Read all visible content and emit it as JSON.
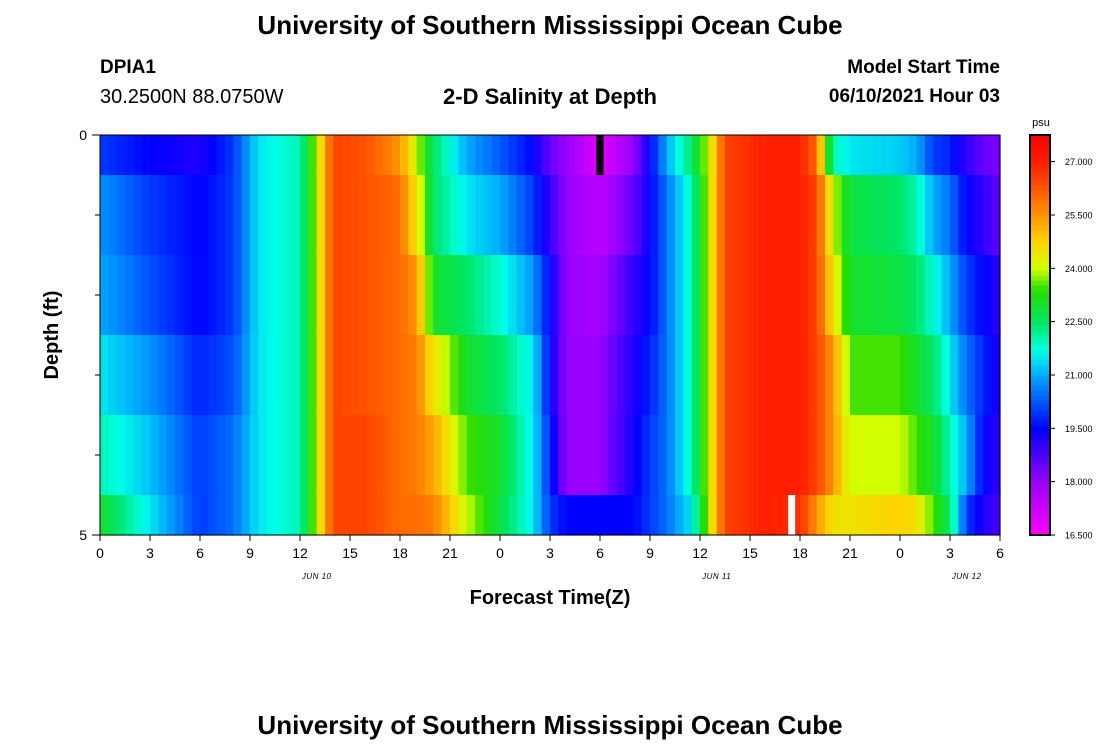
{
  "page": {
    "title_top": "University of Southern Mississippi Ocean Cube",
    "title_bottom": "University of Southern Mississippi Ocean Cube",
    "station_id": "DPIA1",
    "coordinates": "30.2500N  88.0750W",
    "subtitle": "2-D Salinity at Depth",
    "model_start_label": "Model Start Time",
    "model_start_value": "06/10/2021 Hour 03"
  },
  "chart_data": {
    "type": "heatmap",
    "title": "2-D Salinity at Depth",
    "xlabel": "Forecast Time(Z)",
    "ylabel": "Depth (ft)",
    "x_hours_range": [
      0,
      54
    ],
    "x_tick_step_hours": 3,
    "x_tick_labels": [
      "0",
      "3",
      "6",
      "9",
      "12",
      "15",
      "18",
      "21",
      "0",
      "3",
      "6",
      "9",
      "12",
      "15",
      "18",
      "21",
      "0",
      "3",
      "6"
    ],
    "day_labels": [
      {
        "text": "JUN 10",
        "hour": 13
      },
      {
        "text": "JUN 11",
        "hour": 37
      },
      {
        "text": "JUN 12",
        "hour": 52
      }
    ],
    "y_range": [
      0,
      5
    ],
    "y_tick_labels": [
      "0",
      "5"
    ],
    "y_minor_ticks": [
      1,
      2,
      3,
      4
    ],
    "depth_layers": [
      0,
      0.5,
      1.5,
      2.5,
      3.5,
      4.5,
      5
    ],
    "colorbar": {
      "unit": "psu",
      "min": 16.5,
      "max": 27.75,
      "tick_values": [
        16.5,
        18.0,
        19.5,
        21.0,
        22.5,
        24.0,
        25.5,
        27.0
      ],
      "tick_labels": [
        "16.500",
        "18.000",
        "19.500",
        "21.000",
        "22.500",
        "24.000",
        "25.500",
        "27.000"
      ]
    },
    "markers": [
      {
        "hour": 30,
        "depth_start": 0,
        "depth_end": 0.5,
        "color": "#000000"
      },
      {
        "hour": 41.5,
        "depth_start": 4.5,
        "depth_end": 5,
        "color": "#ffffff"
      }
    ],
    "salinity_keyframes": [
      {
        "hour": 0,
        "layers": [
          20.0,
          20.8,
          21.0,
          21.5,
          22.0,
          23.0
        ]
      },
      {
        "hour": 3,
        "layers": [
          19.5,
          20.0,
          20.2,
          20.8,
          21.2,
          21.5
        ]
      },
      {
        "hour": 6,
        "layers": [
          19.2,
          19.5,
          19.5,
          19.8,
          20.0,
          20.0
        ]
      },
      {
        "hour": 8,
        "layers": [
          20.0,
          20.0,
          20.0,
          20.2,
          20.5,
          20.5
        ]
      },
      {
        "hour": 9.5,
        "layers": [
          21.5,
          21.5,
          21.5,
          21.5,
          21.5,
          21.5
        ]
      },
      {
        "hour": 12,
        "layers": [
          22.0,
          22.0,
          22.0,
          22.0,
          22.0,
          22.0
        ]
      },
      {
        "hour": 13,
        "layers": [
          24.0,
          24.0,
          24.0,
          24.0,
          24.0,
          24.0
        ]
      },
      {
        "hour": 14,
        "layers": [
          26.5,
          26.5,
          26.5,
          26.5,
          26.5,
          26.5
        ]
      },
      {
        "hour": 16,
        "layers": [
          26.3,
          26.3,
          26.3,
          26.3,
          26.5,
          26.5
        ]
      },
      {
        "hour": 18,
        "layers": [
          25.5,
          26.0,
          26.0,
          26.0,
          26.0,
          26.0
        ]
      },
      {
        "hour": 19,
        "layers": [
          24.0,
          24.5,
          25.5,
          25.8,
          25.8,
          26.0
        ]
      },
      {
        "hour": 20,
        "layers": [
          22.5,
          22.5,
          23.0,
          24.5,
          25.3,
          25.8
        ]
      },
      {
        "hour": 22,
        "layers": [
          21.0,
          21.5,
          22.5,
          23.0,
          23.5,
          24.0
        ]
      },
      {
        "hour": 24,
        "layers": [
          20.3,
          21.0,
          21.8,
          22.5,
          23.0,
          22.8
        ]
      },
      {
        "hour": 26,
        "layers": [
          19.5,
          20.0,
          20.8,
          21.5,
          21.5,
          21.5
        ]
      },
      {
        "hour": 27,
        "layers": [
          18.5,
          19.0,
          19.5,
          19.5,
          19.8,
          20.0
        ]
      },
      {
        "hour": 28,
        "layers": [
          18.0,
          18.0,
          18.0,
          18.0,
          18.0,
          19.5
        ]
      },
      {
        "hour": 30,
        "layers": [
          17.0,
          17.5,
          17.8,
          18.0,
          18.0,
          19.5
        ]
      },
      {
        "hour": 32,
        "layers": [
          18.0,
          18.5,
          19.0,
          19.2,
          19.3,
          19.5
        ]
      },
      {
        "hour": 33,
        "layers": [
          19.5,
          19.5,
          19.5,
          19.8,
          20.0,
          20.0
        ]
      },
      {
        "hour": 34,
        "layers": [
          21.0,
          20.5,
          20.5,
          20.5,
          20.5,
          20.5
        ]
      },
      {
        "hour": 35.5,
        "layers": [
          22.5,
          22.0,
          22.0,
          22.0,
          22.0,
          21.5
        ]
      },
      {
        "hour": 36.5,
        "layers": [
          24.0,
          24.0,
          24.0,
          24.0,
          24.0,
          24.0
        ]
      },
      {
        "hour": 37.5,
        "layers": [
          26.5,
          26.5,
          26.5,
          26.5,
          26.5,
          26.5
        ]
      },
      {
        "hour": 40,
        "layers": [
          27.0,
          27.0,
          27.0,
          27.0,
          27.0,
          27.0
        ]
      },
      {
        "hour": 42,
        "layers": [
          27.0,
          27.0,
          27.0,
          27.0,
          27.0,
          26.8
        ]
      },
      {
        "hour": 43,
        "layers": [
          26.0,
          26.5,
          26.5,
          26.5,
          26.5,
          25.5
        ]
      },
      {
        "hour": 44,
        "layers": [
          22.0,
          24.0,
          24.5,
          25.5,
          25.5,
          24.5
        ]
      },
      {
        "hour": 45,
        "layers": [
          21.5,
          22.8,
          23.0,
          23.5,
          24.0,
          24.5
        ]
      },
      {
        "hour": 48,
        "layers": [
          21.3,
          22.5,
          22.8,
          23.5,
          24.0,
          24.8
        ]
      },
      {
        "hour": 49,
        "layers": [
          21.0,
          22.0,
          22.5,
          23.0,
          23.5,
          24.5
        ]
      },
      {
        "hour": 50,
        "layers": [
          20.0,
          21.0,
          21.8,
          22.5,
          23.0,
          23.5
        ]
      },
      {
        "hour": 51,
        "layers": [
          19.8,
          20.5,
          21.0,
          21.5,
          22.0,
          22.5
        ]
      },
      {
        "hour": 52,
        "layers": [
          19.0,
          19.5,
          20.0,
          20.5,
          21.0,
          20.0
        ]
      },
      {
        "hour": 53,
        "layers": [
          18.5,
          19.0,
          19.5,
          19.8,
          19.5,
          19.2
        ]
      },
      {
        "hour": 54,
        "layers": [
          18.3,
          18.5,
          19.0,
          19.2,
          19.0,
          18.8
        ]
      }
    ]
  }
}
